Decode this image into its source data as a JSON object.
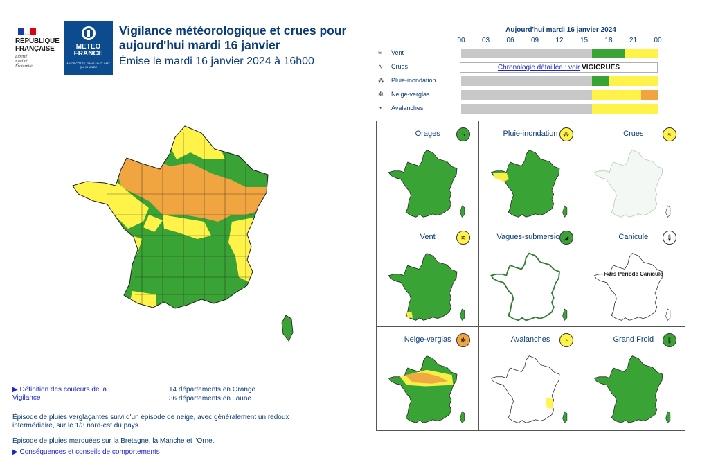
{
  "header": {
    "republic": [
      "RÉPUBLIQUE",
      "FRANÇAISE"
    ],
    "motto": [
      "Liberté",
      "Égalité",
      "Fraternité"
    ],
    "brand": [
      "METEO",
      "FRANCE"
    ],
    "brand_tagline": "À VOS CÔTÉS, DANS UN CLIMAT QUI CHANGE",
    "title": "Vigilance météorologique et crues pour aujourd'hui mardi 16 janvier",
    "emission": "Émise le mardi 16 janvier 2024 à 16h00"
  },
  "colors": {
    "green": "#3aa335",
    "yellow": "#fff34a",
    "orange": "#f0a541",
    "grey": "#c8c8c8",
    "navy": "#0c3c78",
    "link": "#1c25c7"
  },
  "timeline": {
    "date_label": "Aujourd'hui mardi 16 janvier 2024",
    "hours": [
      "00",
      "03",
      "06",
      "09",
      "12",
      "15",
      "18",
      "21",
      "00"
    ],
    "rows": [
      {
        "label": "Vent",
        "icon": "wind-icon",
        "segments": [
          {
            "from": 0,
            "to": 16,
            "level": "none"
          },
          {
            "from": 16,
            "to": 20,
            "level": "green"
          },
          {
            "from": 20,
            "to": 24,
            "level": "yellow"
          }
        ]
      },
      {
        "label": "Crues",
        "icon": "flood-icon",
        "link": "Chronologie détaillée : voir",
        "brand": "VIGICRUES"
      },
      {
        "label": "Pluie-inondation",
        "icon": "rain-flood-icon",
        "segments": [
          {
            "from": 0,
            "to": 16,
            "level": "none"
          },
          {
            "from": 16,
            "to": 18,
            "level": "green"
          },
          {
            "from": 18,
            "to": 24,
            "level": "yellow"
          }
        ]
      },
      {
        "label": "Neige-verglas",
        "icon": "snow-ice-icon",
        "segments": [
          {
            "from": 0,
            "to": 16,
            "level": "none"
          },
          {
            "from": 16,
            "to": 22,
            "level": "yellow"
          },
          {
            "from": 22,
            "to": 24,
            "level": "orange"
          }
        ]
      },
      {
        "label": "Avalanches",
        "icon": "avalanche-icon",
        "segments": [
          {
            "from": 0,
            "to": 16,
            "level": "none"
          },
          {
            "from": 16,
            "to": 24,
            "level": "yellow"
          }
        ]
      }
    ]
  },
  "legend": {
    "definition_link": "▶ Définition des couleurs de la Vigilance",
    "orange_count": "14 départements en Orange",
    "yellow_count": "36 départements en Jaune",
    "episode_1": "Épisode de pluies verglaçantes suivi d'un épisode de neige, avec généralement un redoux intermédiaire, sur le 1/3 nord-est du pays.",
    "episode_2": "Épisode de pluies marquées sur la Bretagne, la Manche et l'Orne.",
    "consequences_link": "▶ Conséquences et conseils de comportements"
  },
  "phenomena": [
    {
      "title": "Orages",
      "level": "green",
      "icon": "lightning-icon"
    },
    {
      "title": "Pluie-inondation",
      "level": "yellow",
      "icon": "rain-flood-icon"
    },
    {
      "title": "Crues",
      "level": "yellow",
      "icon": "flood-icon"
    },
    {
      "title": "Vent",
      "level": "yellow",
      "icon": "wind-icon"
    },
    {
      "title": "Vagues-submersion",
      "level": "green",
      "icon": "wave-icon"
    },
    {
      "title": "Canicule",
      "level": "none",
      "icon": "thermometer-icon",
      "note": "Hors Période Canicule"
    },
    {
      "title": "Neige-verglas",
      "level": "orange",
      "icon": "snow-ice-icon"
    },
    {
      "title": "Avalanches",
      "level": "yellow",
      "icon": "avalanche-icon"
    },
    {
      "title": "Grand Froid",
      "level": "green",
      "icon": "thermometer-icon"
    }
  ]
}
